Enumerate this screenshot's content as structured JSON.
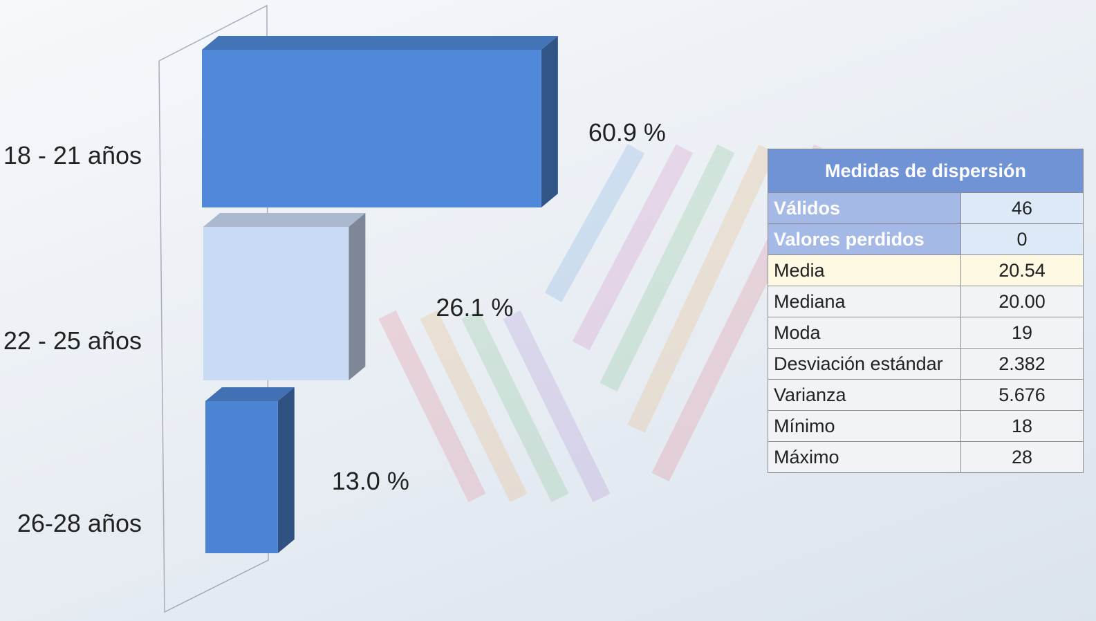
{
  "chart_data": {
    "type": "bar3d",
    "orientation": "horizontal",
    "categories": [
      "18 - 21 años",
      "22 - 25 años",
      "26-28 años"
    ],
    "values": [
      60.9,
      26.1,
      13.0
    ],
    "value_labels": [
      "60.9 %",
      "26.1 %",
      "13.0 %"
    ],
    "colors": [
      "#5089d9",
      "#c9daf4",
      "#4c84d4"
    ]
  },
  "table": {
    "title": "Medidas de dispersión",
    "rows": [
      [
        "Válidos",
        "46"
      ],
      [
        "Valores perdidos",
        "0"
      ],
      [
        "Media",
        "20.54"
      ],
      [
        "Mediana",
        "20.00"
      ],
      [
        "Moda",
        "19"
      ],
      [
        "Desviación estándar",
        "2.382"
      ],
      [
        "Varianza",
        "5.676"
      ],
      [
        "Mínimo",
        "18"
      ],
      [
        "Máximo",
        "28"
      ]
    ]
  }
}
